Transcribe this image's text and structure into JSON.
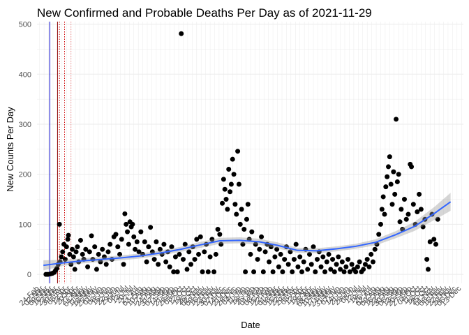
{
  "chart_data": {
    "type": "scatter",
    "title": "New Confirmed and Probable Deaths Per Day as of 2021-11-29",
    "xlabel": "Date",
    "ylabel": "New Counts Per Day",
    "ylim": [
      -18,
      505
    ],
    "yticks": [
      0,
      100,
      200,
      300,
      400,
      500
    ],
    "xlim": [
      "2020-02-20",
      "2021-12-16"
    ],
    "grid": true,
    "legend": "none",
    "colors": {
      "points": "#000000",
      "smooth_line": "#3366ff",
      "ribbon": "#999999",
      "vline_blue": "#0000cc",
      "vline_red": "#8b0000",
      "grid": "#ebebeb"
    },
    "vertical_lines": [
      {
        "date": "2020-03-11",
        "color": "#0000cc",
        "style": "solid"
      },
      {
        "date": "2020-03-23",
        "color": "#8b0000",
        "style": "solid"
      },
      {
        "date": "2020-03-26",
        "color": "#cc0000",
        "style": "dotted"
      },
      {
        "date": "2020-04-03",
        "color": "#cc0000",
        "style": "dotted"
      },
      {
        "date": "2020-04-13",
        "color": "#ee8888",
        "style": "dotted"
      }
    ],
    "smooth": {
      "x": [
        "2020-03-01",
        "2020-04-01",
        "2020-05-01",
        "2020-06-01",
        "2020-07-01",
        "2020-08-01",
        "2020-09-01",
        "2020-10-01",
        "2020-11-01",
        "2020-12-01",
        "2021-01-01",
        "2021-02-01",
        "2021-03-01",
        "2021-04-01",
        "2021-05-01",
        "2021-06-01",
        "2021-07-01",
        "2021-08-01",
        "2021-09-01",
        "2021-10-01",
        "2021-11-01",
        "2021-11-26"
      ],
      "y": [
        18,
        23,
        27,
        30,
        33,
        37,
        43,
        50,
        59,
        67,
        68,
        65,
        58,
        48,
        47,
        51,
        56,
        64,
        79,
        96,
        122,
        145
      ],
      "lower": [
        8,
        17,
        22,
        25,
        28,
        32,
        38,
        45,
        53,
        61,
        62,
        59,
        52,
        43,
        42,
        46,
        51,
        58,
        72,
        87,
        109,
        127
      ],
      "upper": [
        28,
        29,
        32,
        35,
        38,
        42,
        48,
        55,
        65,
        73,
        74,
        71,
        64,
        53,
        52,
        56,
        61,
        70,
        86,
        105,
        135,
        163
      ]
    },
    "points": [
      [
        "2020-03-05",
        0
      ],
      [
        "2020-03-08",
        0
      ],
      [
        "2020-03-12",
        1
      ],
      [
        "2020-03-15",
        2
      ],
      [
        "2020-03-18",
        4
      ],
      [
        "2020-03-20",
        8
      ],
      [
        "2020-03-22",
        12
      ],
      [
        "2020-03-24",
        20
      ],
      [
        "2020-03-26",
        100
      ],
      [
        "2020-03-27",
        25
      ],
      [
        "2020-03-29",
        35
      ],
      [
        "2020-03-31",
        45
      ],
      [
        "2020-04-02",
        60
      ],
      [
        "2020-04-04",
        30
      ],
      [
        "2020-04-06",
        55
      ],
      [
        "2020-04-08",
        70
      ],
      [
        "2020-04-09",
        78
      ],
      [
        "2020-04-11",
        40
      ],
      [
        "2020-04-13",
        20
      ],
      [
        "2020-04-15",
        50
      ],
      [
        "2020-04-17",
        35
      ],
      [
        "2020-04-19",
        10
      ],
      [
        "2020-04-21",
        45
      ],
      [
        "2020-04-23",
        55
      ],
      [
        "2020-04-25",
        25
      ],
      [
        "2020-04-28",
        68
      ],
      [
        "2020-05-01",
        40
      ],
      [
        "2020-05-03",
        30
      ],
      [
        "2020-05-06",
        50
      ],
      [
        "2020-05-09",
        15
      ],
      [
        "2020-05-12",
        45
      ],
      [
        "2020-05-15",
        77
      ],
      [
        "2020-05-17",
        30
      ],
      [
        "2020-05-20",
        55
      ],
      [
        "2020-05-23",
        10
      ],
      [
        "2020-05-26",
        40
      ],
      [
        "2020-05-29",
        25
      ],
      [
        "2020-06-01",
        50
      ],
      [
        "2020-06-04",
        35
      ],
      [
        "2020-06-07",
        20
      ],
      [
        "2020-06-10",
        45
      ],
      [
        "2020-06-13",
        60
      ],
      [
        "2020-06-16",
        30
      ],
      [
        "2020-06-19",
        75
      ],
      [
        "2020-06-22",
        80
      ],
      [
        "2020-06-25",
        55
      ],
      [
        "2020-06-28",
        40
      ],
      [
        "2020-07-01",
        70
      ],
      [
        "2020-07-04",
        20
      ],
      [
        "2020-07-06",
        121
      ],
      [
        "2020-07-08",
        100
      ],
      [
        "2020-07-10",
        85
      ],
      [
        "2020-07-12",
        60
      ],
      [
        "2020-07-14",
        105
      ],
      [
        "2020-07-16",
        95
      ],
      [
        "2020-07-18",
        100
      ],
      [
        "2020-07-20",
        75
      ],
      [
        "2020-07-22",
        50
      ],
      [
        "2020-07-25",
        65
      ],
      [
        "2020-07-28",
        45
      ],
      [
        "2020-07-31",
        85
      ],
      [
        "2020-08-03",
        40
      ],
      [
        "2020-08-06",
        65
      ],
      [
        "2020-08-09",
        25
      ],
      [
        "2020-08-12",
        55
      ],
      [
        "2020-08-15",
        94
      ],
      [
        "2020-08-18",
        45
      ],
      [
        "2020-08-21",
        30
      ],
      [
        "2020-08-24",
        65
      ],
      [
        "2020-08-27",
        20
      ],
      [
        "2020-08-30",
        50
      ],
      [
        "2020-09-02",
        40
      ],
      [
        "2020-09-05",
        60
      ],
      [
        "2020-09-08",
        25
      ],
      [
        "2020-09-11",
        45
      ],
      [
        "2020-09-14",
        15
      ],
      [
        "2020-09-17",
        55
      ],
      [
        "2020-09-20",
        5
      ],
      [
        "2020-09-23",
        35
      ],
      [
        "2020-09-26",
        5
      ],
      [
        "2020-09-29",
        40
      ],
      [
        "2020-10-02",
        481
      ],
      [
        "2020-10-05",
        30
      ],
      [
        "2020-10-08",
        60
      ],
      [
        "2020-10-11",
        10
      ],
      [
        "2020-10-14",
        45
      ],
      [
        "2020-10-17",
        20
      ],
      [
        "2020-10-20",
        55
      ],
      [
        "2020-10-23",
        30
      ],
      [
        "2020-10-26",
        70
      ],
      [
        "2020-10-29",
        40
      ],
      [
        "2020-11-01",
        75
      ],
      [
        "2020-11-04",
        5
      ],
      [
        "2020-11-07",
        45
      ],
      [
        "2020-11-10",
        60
      ],
      [
        "2020-11-13",
        5
      ],
      [
        "2020-11-16",
        35
      ],
      [
        "2020-11-19",
        70
      ],
      [
        "2020-11-22",
        5
      ],
      [
        "2020-11-25",
        40
      ],
      [
        "2020-11-28",
        90
      ],
      [
        "2020-12-01",
        80
      ],
      [
        "2020-12-03",
        60
      ],
      [
        "2020-12-05",
        142
      ],
      [
        "2020-12-07",
        190
      ],
      [
        "2020-12-09",
        170
      ],
      [
        "2020-12-11",
        150
      ],
      [
        "2020-12-13",
        130
      ],
      [
        "2020-12-15",
        210
      ],
      [
        "2020-12-17",
        165
      ],
      [
        "2020-12-19",
        180
      ],
      [
        "2020-12-21",
        230
      ],
      [
        "2020-12-23",
        200
      ],
      [
        "2020-12-25",
        140
      ],
      [
        "2020-12-27",
        120
      ],
      [
        "2020-12-29",
        246
      ],
      [
        "2020-12-31",
        180
      ],
      [
        "2021-01-02",
        100
      ],
      [
        "2021-01-04",
        130
      ],
      [
        "2021-01-06",
        60
      ],
      [
        "2021-01-08",
        90
      ],
      [
        "2021-01-10",
        5
      ],
      [
        "2021-01-12",
        110
      ],
      [
        "2021-01-14",
        140
      ],
      [
        "2021-01-16",
        70
      ],
      [
        "2021-01-18",
        40
      ],
      [
        "2021-01-20",
        85
      ],
      [
        "2021-01-23",
        5
      ],
      [
        "2021-01-26",
        60
      ],
      [
        "2021-01-29",
        30
      ],
      [
        "2021-02-01",
        50
      ],
      [
        "2021-02-04",
        75
      ],
      [
        "2021-02-07",
        5
      ],
      [
        "2021-02-10",
        45
      ],
      [
        "2021-02-13",
        60
      ],
      [
        "2021-02-16",
        25
      ],
      [
        "2021-02-19",
        55
      ],
      [
        "2021-02-22",
        5
      ],
      [
        "2021-02-25",
        35
      ],
      [
        "2021-02-28",
        50
      ],
      [
        "2021-03-03",
        15
      ],
      [
        "2021-03-06",
        40
      ],
      [
        "2021-03-09",
        5
      ],
      [
        "2021-03-12",
        30
      ],
      [
        "2021-03-15",
        55
      ],
      [
        "2021-03-18",
        20
      ],
      [
        "2021-03-21",
        45
      ],
      [
        "2021-03-24",
        5
      ],
      [
        "2021-03-27",
        30
      ],
      [
        "2021-03-30",
        60
      ],
      [
        "2021-04-02",
        15
      ],
      [
        "2021-04-05",
        35
      ],
      [
        "2021-04-08",
        5
      ],
      [
        "2021-04-11",
        25
      ],
      [
        "2021-04-14",
        50
      ],
      [
        "2021-04-17",
        10
      ],
      [
        "2021-04-20",
        40
      ],
      [
        "2021-04-23",
        20
      ],
      [
        "2021-04-26",
        55
      ],
      [
        "2021-04-29",
        5
      ],
      [
        "2021-05-02",
        30
      ],
      [
        "2021-05-05",
        45
      ],
      [
        "2021-05-08",
        15
      ],
      [
        "2021-05-11",
        35
      ],
      [
        "2021-05-14",
        5
      ],
      [
        "2021-05-17",
        25
      ],
      [
        "2021-05-20",
        40
      ],
      [
        "2021-05-23",
        10
      ],
      [
        "2021-05-26",
        30
      ],
      [
        "2021-05-29",
        5
      ],
      [
        "2021-06-01",
        20
      ],
      [
        "2021-06-04",
        35
      ],
      [
        "2021-06-07",
        10
      ],
      [
        "2021-06-10",
        25
      ],
      [
        "2021-06-13",
        5
      ],
      [
        "2021-06-16",
        15
      ],
      [
        "2021-06-19",
        30
      ],
      [
        "2021-06-22",
        5
      ],
      [
        "2021-06-25",
        20
      ],
      [
        "2021-06-28",
        10
      ],
      [
        "2021-07-01",
        5
      ],
      [
        "2021-07-04",
        15
      ],
      [
        "2021-07-07",
        25
      ],
      [
        "2021-07-10",
        5
      ],
      [
        "2021-07-13",
        10
      ],
      [
        "2021-07-16",
        20
      ],
      [
        "2021-07-19",
        30
      ],
      [
        "2021-07-22",
        15
      ],
      [
        "2021-07-25",
        40
      ],
      [
        "2021-07-28",
        25
      ],
      [
        "2021-07-31",
        50
      ],
      [
        "2021-08-03",
        60
      ],
      [
        "2021-08-06",
        80
      ],
      [
        "2021-08-09",
        100
      ],
      [
        "2021-08-11",
        130
      ],
      [
        "2021-08-13",
        155
      ],
      [
        "2021-08-15",
        120
      ],
      [
        "2021-08-17",
        175
      ],
      [
        "2021-08-19",
        195
      ],
      [
        "2021-08-21",
        215
      ],
      [
        "2021-08-23",
        235
      ],
      [
        "2021-08-25",
        180
      ],
      [
        "2021-08-27",
        140
      ],
      [
        "2021-08-29",
        205
      ],
      [
        "2021-08-31",
        160
      ],
      [
        "2021-09-02",
        310
      ],
      [
        "2021-09-04",
        185
      ],
      [
        "2021-09-06",
        200
      ],
      [
        "2021-09-08",
        105
      ],
      [
        "2021-09-10",
        130
      ],
      [
        "2021-09-12",
        90
      ],
      [
        "2021-09-15",
        150
      ],
      [
        "2021-09-18",
        110
      ],
      [
        "2021-09-21",
        120
      ],
      [
        "2021-09-24",
        220
      ],
      [
        "2021-09-26",
        215
      ],
      [
        "2021-09-29",
        140
      ],
      [
        "2021-10-02",
        100
      ],
      [
        "2021-10-05",
        125
      ],
      [
        "2021-10-08",
        160
      ],
      [
        "2021-10-11",
        130
      ],
      [
        "2021-10-14",
        95
      ],
      [
        "2021-10-17",
        110
      ],
      [
        "2021-10-20",
        30
      ],
      [
        "2021-10-22",
        10
      ],
      [
        "2021-10-25",
        65
      ],
      [
        "2021-10-28",
        120
      ],
      [
        "2021-10-31",
        70
      ],
      [
        "2021-11-03",
        60
      ],
      [
        "2021-11-06",
        110
      ]
    ]
  }
}
